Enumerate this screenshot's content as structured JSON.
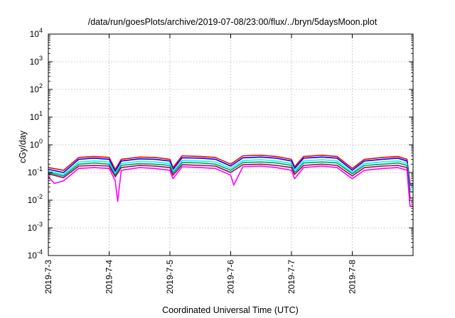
{
  "chart_data": {
    "type": "line",
    "title": "/data/run/goesPlots/archive/2019-07-08/23:00/flux/../bryn/5daysMoon.plot",
    "xlabel": "Coordinated Universal Time (UTC)",
    "ylabel": "cGy/day",
    "y_scale": "log",
    "ylim_exponents": [
      -4,
      4
    ],
    "y_tick_labels": [
      {
        "exp": -4,
        "base": "10",
        "sup": "-4"
      },
      {
        "exp": -3,
        "base": "10",
        "sup": "-3"
      },
      {
        "exp": -2,
        "base": "10",
        "sup": "-2"
      },
      {
        "exp": -1,
        "base": "10",
        "sup": "-1"
      },
      {
        "exp": 0,
        "base": "10",
        "sup": "0"
      },
      {
        "exp": 1,
        "base": "10",
        "sup": "1"
      },
      {
        "exp": 2,
        "base": "10",
        "sup": "2"
      },
      {
        "exp": 3,
        "base": "10",
        "sup": "3"
      },
      {
        "exp": 4,
        "base": "10",
        "sup": "4"
      }
    ],
    "x_range_days": [
      0,
      6.0
    ],
    "x_tick_labels": [
      "2019-7-3",
      "2019-7-4",
      "2019-7-5",
      "2019-7-6",
      "2019-7-7",
      "2019-7-8"
    ],
    "grid": true,
    "series": [
      {
        "color": "#ff0000",
        "points": [
          [
            0.0,
            0.15
          ],
          [
            0.25,
            0.12
          ],
          [
            0.5,
            0.35
          ],
          [
            0.75,
            0.38
          ],
          [
            1.0,
            0.35
          ],
          [
            1.1,
            0.13
          ],
          [
            1.2,
            0.3
          ],
          [
            1.5,
            0.36
          ],
          [
            1.75,
            0.35
          ],
          [
            2.0,
            0.3
          ],
          [
            2.05,
            0.15
          ],
          [
            2.2,
            0.4
          ],
          [
            2.5,
            0.38
          ],
          [
            2.75,
            0.35
          ],
          [
            3.0,
            0.2
          ],
          [
            3.2,
            0.4
          ],
          [
            3.5,
            0.42
          ],
          [
            3.75,
            0.38
          ],
          [
            4.0,
            0.3
          ],
          [
            4.05,
            0.16
          ],
          [
            4.2,
            0.38
          ],
          [
            4.5,
            0.42
          ],
          [
            4.75,
            0.38
          ],
          [
            5.0,
            0.14
          ],
          [
            5.2,
            0.3
          ],
          [
            5.5,
            0.35
          ],
          [
            5.75,
            0.38
          ],
          [
            5.9,
            0.3
          ],
          [
            5.95,
            0.04
          ],
          [
            6.0,
            0.04
          ]
        ]
      },
      {
        "color": "#0000ff",
        "points": [
          [
            0.0,
            0.13
          ],
          [
            0.25,
            0.1
          ],
          [
            0.5,
            0.3
          ],
          [
            0.75,
            0.33
          ],
          [
            1.0,
            0.3
          ],
          [
            1.1,
            0.11
          ],
          [
            1.2,
            0.26
          ],
          [
            1.5,
            0.31
          ],
          [
            1.75,
            0.3
          ],
          [
            2.0,
            0.26
          ],
          [
            2.05,
            0.13
          ],
          [
            2.2,
            0.34
          ],
          [
            2.5,
            0.33
          ],
          [
            2.75,
            0.3
          ],
          [
            3.0,
            0.17
          ],
          [
            3.2,
            0.34
          ],
          [
            3.5,
            0.36
          ],
          [
            3.75,
            0.33
          ],
          [
            4.0,
            0.26
          ],
          [
            4.05,
            0.14
          ],
          [
            4.2,
            0.33
          ],
          [
            4.5,
            0.36
          ],
          [
            4.75,
            0.33
          ],
          [
            5.0,
            0.12
          ],
          [
            5.2,
            0.26
          ],
          [
            5.5,
            0.3
          ],
          [
            5.75,
            0.33
          ],
          [
            5.9,
            0.26
          ],
          [
            5.95,
            0.035
          ],
          [
            6.0,
            0.035
          ]
        ]
      },
      {
        "color": "#00ffff",
        "points": [
          [
            0.0,
            0.11
          ],
          [
            0.25,
            0.085
          ],
          [
            0.5,
            0.24
          ],
          [
            0.75,
            0.26
          ],
          [
            1.0,
            0.24
          ],
          [
            1.1,
            0.09
          ],
          [
            1.2,
            0.21
          ],
          [
            1.5,
            0.25
          ],
          [
            1.75,
            0.24
          ],
          [
            2.0,
            0.21
          ],
          [
            2.05,
            0.11
          ],
          [
            2.2,
            0.27
          ],
          [
            2.5,
            0.26
          ],
          [
            2.75,
            0.24
          ],
          [
            3.0,
            0.14
          ],
          [
            3.2,
            0.27
          ],
          [
            3.5,
            0.29
          ],
          [
            3.75,
            0.26
          ],
          [
            4.0,
            0.21
          ],
          [
            4.05,
            0.12
          ],
          [
            4.2,
            0.26
          ],
          [
            4.5,
            0.29
          ],
          [
            4.75,
            0.26
          ],
          [
            5.0,
            0.1
          ],
          [
            5.2,
            0.21
          ],
          [
            5.5,
            0.24
          ],
          [
            5.75,
            0.26
          ],
          [
            5.9,
            0.21
          ],
          [
            5.95,
            0.025
          ],
          [
            6.0,
            0.025
          ]
        ]
      },
      {
        "color": "#00a050",
        "points": [
          [
            0.0,
            0.1
          ],
          [
            0.25,
            0.075
          ],
          [
            0.5,
            0.2
          ],
          [
            0.75,
            0.22
          ],
          [
            1.0,
            0.2
          ],
          [
            1.1,
            0.08
          ],
          [
            1.2,
            0.18
          ],
          [
            1.5,
            0.21
          ],
          [
            1.75,
            0.2
          ],
          [
            2.0,
            0.18
          ],
          [
            2.05,
            0.095
          ],
          [
            2.2,
            0.23
          ],
          [
            2.5,
            0.22
          ],
          [
            2.75,
            0.2
          ],
          [
            3.0,
            0.12
          ],
          [
            3.2,
            0.23
          ],
          [
            3.5,
            0.24
          ],
          [
            3.75,
            0.22
          ],
          [
            4.0,
            0.18
          ],
          [
            4.05,
            0.1
          ],
          [
            4.2,
            0.22
          ],
          [
            4.5,
            0.24
          ],
          [
            4.75,
            0.22
          ],
          [
            5.0,
            0.09
          ],
          [
            5.2,
            0.18
          ],
          [
            5.5,
            0.2
          ],
          [
            5.75,
            0.22
          ],
          [
            5.9,
            0.18
          ],
          [
            5.95,
            0.02
          ],
          [
            6.0,
            0.02
          ]
        ]
      },
      {
        "color": "#a0005a",
        "points": [
          [
            0.0,
            0.09
          ],
          [
            0.25,
            0.065
          ],
          [
            0.5,
            0.17
          ],
          [
            0.75,
            0.18
          ],
          [
            1.0,
            0.17
          ],
          [
            1.1,
            0.07
          ],
          [
            1.2,
            0.15
          ],
          [
            1.5,
            0.18
          ],
          [
            1.75,
            0.17
          ],
          [
            2.0,
            0.15
          ],
          [
            2.05,
            0.08
          ],
          [
            2.2,
            0.19
          ],
          [
            2.5,
            0.18
          ],
          [
            2.75,
            0.17
          ],
          [
            3.0,
            0.1
          ],
          [
            3.2,
            0.19
          ],
          [
            3.5,
            0.2
          ],
          [
            3.75,
            0.18
          ],
          [
            4.0,
            0.15
          ],
          [
            4.05,
            0.085
          ],
          [
            4.2,
            0.18
          ],
          [
            4.5,
            0.2
          ],
          [
            4.75,
            0.18
          ],
          [
            5.0,
            0.075
          ],
          [
            5.2,
            0.15
          ],
          [
            5.5,
            0.17
          ],
          [
            5.75,
            0.18
          ],
          [
            5.9,
            0.15
          ],
          [
            5.95,
            0.012
          ],
          [
            6.0,
            0.012
          ]
        ]
      },
      {
        "color": "#ff00ff",
        "points": [
          [
            0.0,
            0.07
          ],
          [
            0.1,
            0.04
          ],
          [
            0.25,
            0.05
          ],
          [
            0.5,
            0.14
          ],
          [
            0.75,
            0.15
          ],
          [
            1.0,
            0.14
          ],
          [
            1.1,
            0.05
          ],
          [
            1.14,
            0.009
          ],
          [
            1.2,
            0.12
          ],
          [
            1.5,
            0.15
          ],
          [
            1.75,
            0.14
          ],
          [
            2.0,
            0.12
          ],
          [
            2.05,
            0.06
          ],
          [
            2.2,
            0.16
          ],
          [
            2.5,
            0.15
          ],
          [
            2.75,
            0.14
          ],
          [
            3.0,
            0.08
          ],
          [
            3.05,
            0.035
          ],
          [
            3.2,
            0.16
          ],
          [
            3.5,
            0.17
          ],
          [
            3.75,
            0.15
          ],
          [
            4.0,
            0.12
          ],
          [
            4.05,
            0.06
          ],
          [
            4.2,
            0.15
          ],
          [
            4.5,
            0.17
          ],
          [
            4.75,
            0.15
          ],
          [
            5.0,
            0.06
          ],
          [
            5.2,
            0.12
          ],
          [
            5.5,
            0.14
          ],
          [
            5.75,
            0.15
          ],
          [
            5.9,
            0.12
          ],
          [
            5.95,
            0.006
          ],
          [
            6.0,
            0.006
          ]
        ]
      }
    ]
  }
}
